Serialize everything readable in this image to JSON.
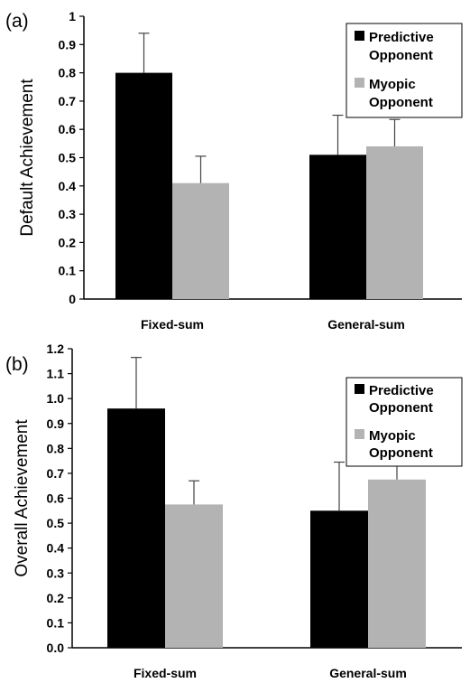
{
  "chart_data": [
    {
      "panel_label": "(a)",
      "type": "bar",
      "categories": [
        "Fixed-sum",
        "General-sum"
      ],
      "series": [
        {
          "name": "Predictive Opponent",
          "legend_lines": [
            "Predictive",
            "Opponent"
          ],
          "color": "#000000",
          "values": [
            0.8,
            0.51
          ],
          "errors": [
            0.14,
            0.14
          ]
        },
        {
          "name": "Myopic Opponent",
          "legend_lines": [
            "Myopic",
            "Opponent"
          ],
          "color": "#b3b3b3",
          "values": [
            0.41,
            0.54
          ],
          "errors": [
            0.095,
            0.095
          ]
        }
      ],
      "ylabel": "Default Achievement",
      "ylim": [
        0,
        1
      ],
      "yticks": [
        "0",
        "0.1",
        "0.2",
        "0.3",
        "0.4",
        "0.5",
        "0.6",
        "0.7",
        "0.8",
        "0.9",
        "1"
      ],
      "grid": false,
      "legend": "top-right"
    },
    {
      "panel_label": "(b)",
      "type": "bar",
      "categories": [
        "Fixed-sum",
        "General-sum"
      ],
      "series": [
        {
          "name": "Predictive Opponent",
          "legend_lines": [
            "Predictive",
            "Opponent"
          ],
          "color": "#000000",
          "values": [
            0.96,
            0.55
          ],
          "errors": [
            0.205,
            0.195
          ]
        },
        {
          "name": "Myopic Opponent",
          "legend_lines": [
            "Myopic",
            "Opponent"
          ],
          "color": "#b3b3b3",
          "values": [
            0.575,
            0.675
          ],
          "errors": [
            0.095,
            0.105
          ]
        }
      ],
      "ylabel": "Overall Achievement",
      "ylim": [
        0,
        1.2
      ],
      "yticks": [
        "0.0",
        "0.1",
        "0.2",
        "0.3",
        "0.4",
        "0.5",
        "0.6",
        "0.7",
        "0.8",
        "0.9",
        "1.0",
        "1.1",
        "1.2"
      ],
      "grid": false,
      "legend": "top-right"
    }
  ]
}
